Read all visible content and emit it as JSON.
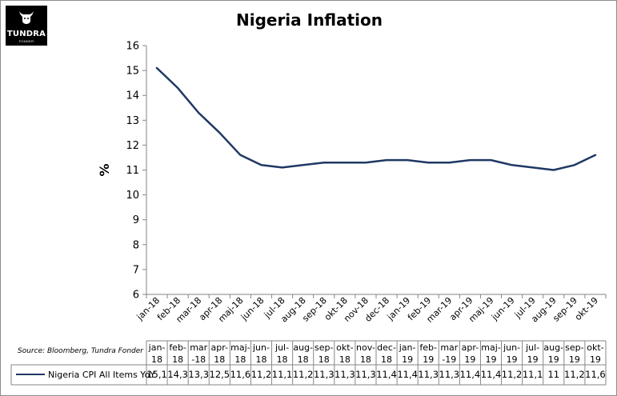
{
  "logo": {
    "brand": "TUNDRA",
    "sub": "FONDER"
  },
  "chart_data": {
    "type": "line",
    "title": "Nigeria Inflation",
    "ylabel": "%",
    "xlabel": "",
    "ylim": [
      6,
      16
    ],
    "yticks": [
      6,
      7,
      8,
      9,
      10,
      11,
      12,
      13,
      14,
      15,
      16
    ],
    "grid": false,
    "categories": [
      "jan-18",
      "feb-18",
      "mar-18",
      "apr-18",
      "maj-18",
      "jun-18",
      "jul-18",
      "aug-18",
      "sep-18",
      "okt-18",
      "nov-18",
      "dec-18",
      "jan-19",
      "feb-19",
      "mar-19",
      "apr-19",
      "maj-19",
      "jun-19",
      "jul-19",
      "aug-19",
      "sep-19",
      "okt-19"
    ],
    "series": [
      {
        "name": "Nigeria CPI All Items YoY",
        "color": "#1f3864",
        "values": [
          15.1,
          14.3,
          13.3,
          12.5,
          11.6,
          11.2,
          11.1,
          11.2,
          11.3,
          11.3,
          11.3,
          11.4,
          11.4,
          11.3,
          11.3,
          11.4,
          11.4,
          11.2,
          11.1,
          11.0,
          11.2,
          11.6
        ]
      }
    ],
    "data_table": {
      "headers": [
        "jan-\n18",
        "feb-\n18",
        "mar\n-18",
        "apr-\n18",
        "maj-\n18",
        "jun-\n18",
        "jul-\n18",
        "aug-\n18",
        "sep-\n18",
        "okt-\n18",
        "nov-\n18",
        "dec-\n18",
        "jan-\n19",
        "feb-\n19",
        "mar\n-19",
        "apr-\n19",
        "maj-\n19",
        "jun-\n19",
        "jul-\n19",
        "aug-\n19",
        "sep-\n19",
        "okt-\n19"
      ],
      "values": [
        "15,1",
        "14,3",
        "13,3",
        "12,5",
        "11,6",
        "11,2",
        "11,1",
        "11,2",
        "11,3",
        "11,3",
        "11,3",
        "11,4",
        "11,4",
        "11,3",
        "11,3",
        "11,4",
        "11,4",
        "11,2",
        "11,1",
        "11",
        "11,2",
        "11,6"
      ]
    },
    "source": "Source: Bloomberg, Tundra Fonder"
  }
}
